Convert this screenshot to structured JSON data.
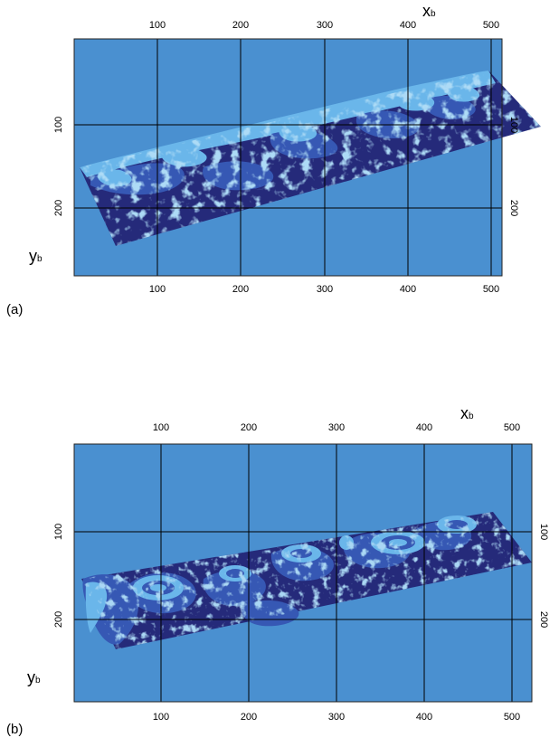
{
  "colors": {
    "background": "#4a90d0",
    "deep": "#252a7a",
    "mid": "#3658b4",
    "light": "#6ab6ea",
    "grid": "#000000"
  },
  "panels": [
    {
      "label": "(a)",
      "x_axis_title": "x",
      "x_axis_sub": "b",
      "y_axis_title": "y",
      "y_axis_sub": "b",
      "x_ticks": [
        "100",
        "200",
        "300",
        "400",
        "500"
      ],
      "y_ticks_left": [
        "100",
        "200"
      ],
      "y_ticks_right": [
        "100",
        "200"
      ]
    },
    {
      "label": "(b)",
      "x_axis_title": "x",
      "x_axis_sub": "b",
      "y_axis_title": "y",
      "y_axis_sub": "b",
      "x_ticks": [
        "100",
        "200",
        "300",
        "400",
        "500"
      ],
      "y_ticks_left": [
        "100",
        "200"
      ],
      "y_ticks_right": [
        "100",
        "200"
      ]
    }
  ]
}
